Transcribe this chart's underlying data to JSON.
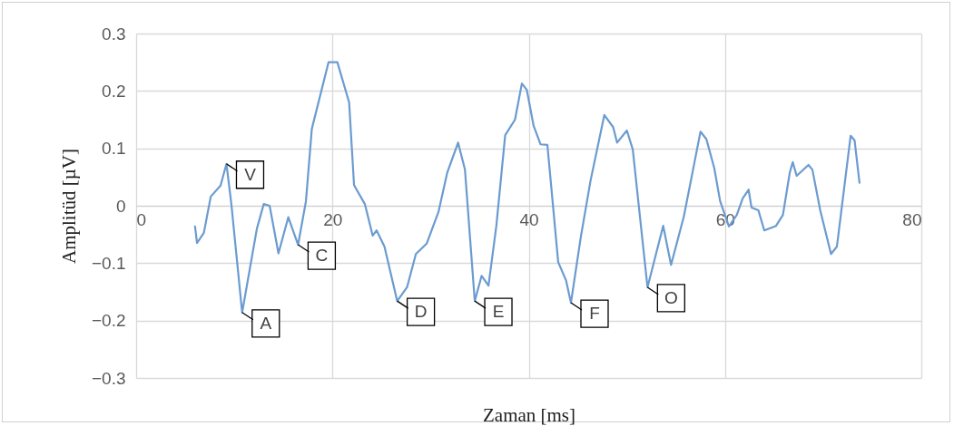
{
  "chart_data": {
    "type": "line",
    "xlabel": "Zaman [ms]",
    "ylabel": "Amplitüd  [µV]",
    "x": [
      6.0,
      6.2,
      6.9,
      7.6,
      8.6,
      9.2,
      9.7,
      10.8,
      12.3,
      13.0,
      13.6,
      14.5,
      15.5,
      16.5,
      17.3,
      17.9,
      19.6,
      20.5,
      21.7,
      22.2,
      23.3,
      24.1,
      24.5,
      25.3,
      26.6,
      27.6,
      28.5,
      29.6,
      30.8,
      31.7,
      32.8,
      33.5,
      34.5,
      35.2,
      35.9,
      36.7,
      37.6,
      38.6,
      39.3,
      39.8,
      40.5,
      41.2,
      41.9,
      43.0,
      43.8,
      44.3,
      45.3,
      46.3,
      47.7,
      48.6,
      49.0,
      50.0,
      50.6,
      52.1,
      53.7,
      54.5,
      55.8,
      57.5,
      58.1,
      58.9,
      59.5,
      60.4,
      61.2,
      61.8,
      62.4,
      62.7,
      63.4,
      64.0,
      65.2,
      65.9,
      66.6,
      66.9,
      67.3,
      68.5,
      68.9,
      69.7,
      70.8,
      71.4,
      72.8,
      73.2,
      73.7
    ],
    "series": [
      {
        "color": "#6b9bd0",
        "values": [
          -0.036,
          -0.065,
          -0.047,
          0.016,
          0.035,
          0.073,
          0.003,
          -0.186,
          -0.04,
          0.003,
          0.0,
          -0.083,
          -0.02,
          -0.068,
          0.008,
          0.134,
          0.25,
          0.25,
          0.18,
          0.036,
          0.003,
          -0.052,
          -0.043,
          -0.071,
          -0.166,
          -0.142,
          -0.084,
          -0.066,
          -0.011,
          0.058,
          0.11,
          0.063,
          -0.166,
          -0.122,
          -0.139,
          -0.035,
          0.123,
          0.15,
          0.213,
          0.202,
          0.139,
          0.107,
          0.106,
          -0.098,
          -0.13,
          -0.169,
          -0.055,
          0.044,
          0.158,
          0.137,
          0.11,
          0.131,
          0.098,
          -0.142,
          -0.035,
          -0.103,
          -0.019,
          0.129,
          0.116,
          0.066,
          0.008,
          -0.036,
          -0.016,
          0.013,
          0.028,
          -0.003,
          -0.008,
          -0.043,
          -0.035,
          -0.016,
          0.058,
          0.076,
          0.052,
          0.071,
          0.063,
          -0.008,
          -0.084,
          -0.071,
          0.122,
          0.114,
          0.04
        ]
      }
    ],
    "xlim": [
      0,
      80
    ],
    "xticks": [
      0,
      20,
      40,
      60,
      80
    ],
    "ylim": [
      -0.3,
      0.3
    ],
    "yticks": [
      -0.3,
      -0.2,
      -0.1,
      0,
      0.1,
      0.2,
      0.3
    ],
    "grid": true,
    "annotations": [
      {
        "text": "V",
        "x": 9.2,
        "y": 0.073
      },
      {
        "text": "A",
        "x": 10.8,
        "y": -0.186
      },
      {
        "text": "C",
        "x": 16.5,
        "y": -0.068
      },
      {
        "text": "D",
        "x": 26.6,
        "y": -0.166
      },
      {
        "text": "E",
        "x": 34.5,
        "y": -0.166
      },
      {
        "text": "F",
        "x": 44.3,
        "y": -0.169
      },
      {
        "text": "O",
        "x": 52.1,
        "y": -0.142
      }
    ]
  }
}
